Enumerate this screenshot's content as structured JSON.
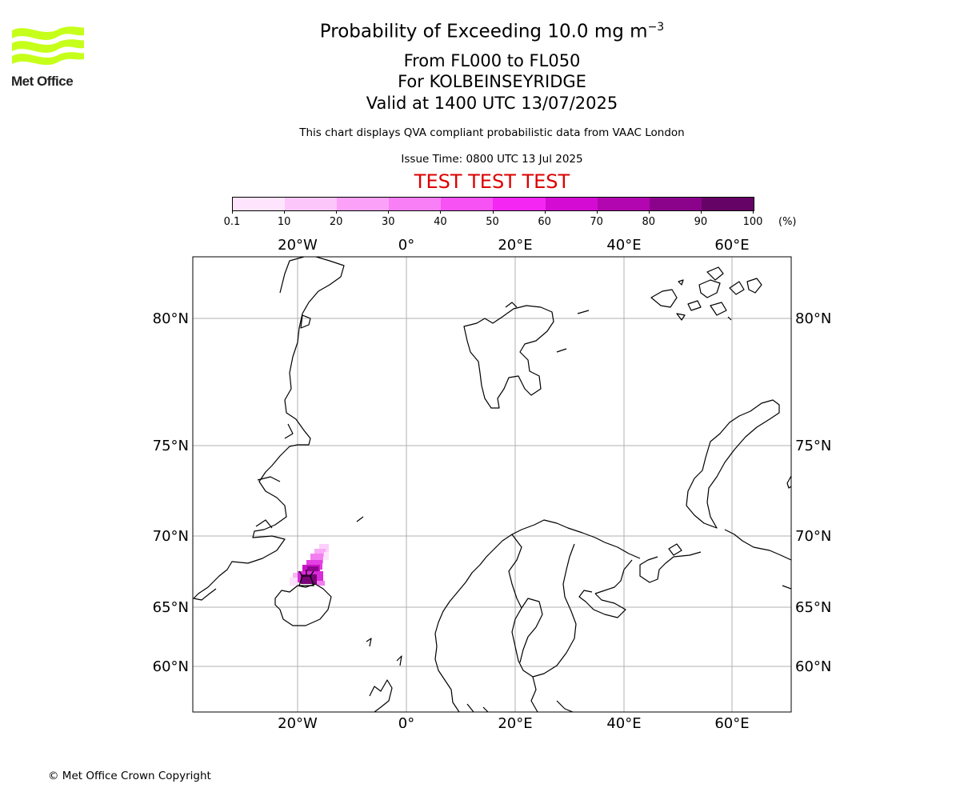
{
  "logo": {
    "text": "Met Office"
  },
  "title": {
    "main": "Probability of Exceeding 10.0 mg m",
    "main_sup": "−3",
    "levels": "From FL000 to FL050",
    "volcano": "For KOLBEINSEYRIDGE",
    "valid": "Valid at 1400 UTC 13/07/2025",
    "description": "This chart displays QVA compliant probabilistic data from VAAC London",
    "issue": "Issue Time: 0800 UTC 13 Jul 2025",
    "test_banner": "TEST TEST TEST"
  },
  "colors": {
    "test_banner": "#dd0000",
    "logo_green": "#c6ff1a",
    "grid": "#b0b0b0",
    "coast": "#000000"
  },
  "colorbar": {
    "unit": "(%)",
    "ticks": [
      "0.1",
      "10",
      "20",
      "30",
      "40",
      "50",
      "60",
      "70",
      "80",
      "90",
      "100"
    ],
    "colors": [
      "#ffe4fd",
      "#fdc6fb",
      "#fba2f8",
      "#f97ff6",
      "#f652f4",
      "#f326f3",
      "#d40bd3",
      "#b106b0",
      "#8c038b",
      "#660366"
    ]
  },
  "map": {
    "projection": "polar stereographic",
    "lon_labels": [
      "20°W",
      "0°",
      "20°E",
      "40°E",
      "60°E"
    ],
    "lat_labels": [
      "80°N",
      "75°N",
      "70°N",
      "65°N",
      "60°N"
    ],
    "volcano_name": "KOLBEINSEYRIDGE",
    "volcano_marker": "volcano-icon"
  },
  "footer": {
    "copyright": "© Met Office Crown Copyright"
  }
}
